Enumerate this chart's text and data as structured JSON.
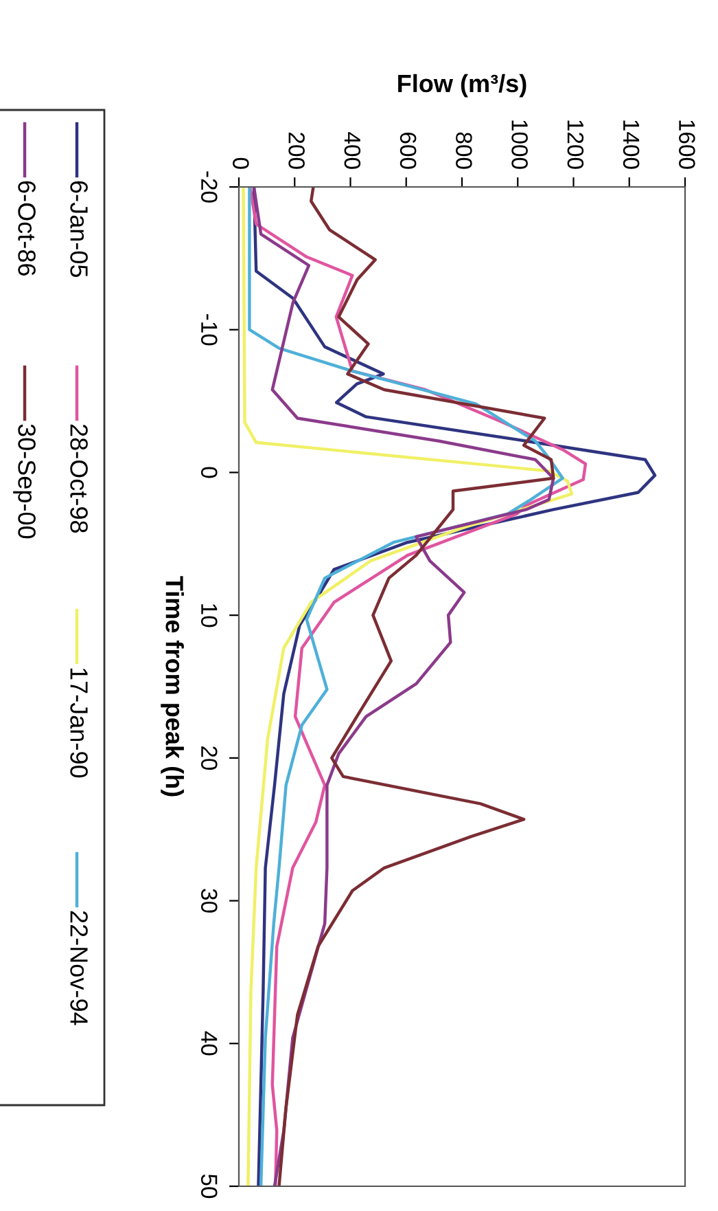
{
  "chart_data": {
    "type": "line",
    "xlabel": "Flow (m³/s)",
    "ylabel": "Time from peak (h)",
    "xlim": [
      0,
      1600
    ],
    "xticks": [
      0,
      200,
      400,
      600,
      800,
      1000,
      1200,
      1400,
      1600
    ],
    "ylim": [
      50,
      -20
    ],
    "yticks": [
      -20,
      -10,
      0,
      10,
      20,
      30,
      40,
      50
    ],
    "grid": false,
    "legend": "left",
    "line_style": "solid",
    "marker": "none",
    "series": [
      {
        "name": "6-Jan-05",
        "color": "#2e3480",
        "values": [
          -20,
          -14.1,
          -12.2,
          -8.8,
          -6.9,
          -6.2,
          -4.9,
          -3.9,
          -2.2,
          -0.9,
          0.2,
          1.4,
          2.6,
          4.9,
          6.8,
          8.4,
          10.7,
          15.5,
          21.9,
          27.7,
          36.4,
          50
        ],
        "x": [
          54,
          62,
          194,
          308,
          518,
          423,
          350,
          456,
          1030,
          1457,
          1492,
          1432,
          1128,
          604,
          341,
          292,
          218,
          161,
          128,
          95,
          87,
          70
        ]
      },
      {
        "name": "28-Oct-98",
        "color": "#e0559f",
        "values": [
          -20,
          -17.4,
          -15.1,
          -13.8,
          -10.9,
          -7.1,
          -5.8,
          -3.5,
          -1.6,
          -0.6,
          0.5,
          2.3,
          2.9,
          5.8,
          9.1,
          12.3,
          17.1,
          21.9,
          24.5,
          27.7,
          33.2,
          42.9,
          46.1,
          50
        ],
        "x": [
          40,
          62,
          243,
          407,
          349,
          407,
          669,
          948,
          1161,
          1243,
          1235,
          1030,
          997,
          605,
          341,
          226,
          202,
          308,
          276,
          193,
          136,
          120,
          136,
          131
        ]
      },
      {
        "name": "17-Jan-90",
        "color": "#f0f066",
        "values": [
          -20,
          -3.5,
          -2.1,
          -0.1,
          0.6,
          1.5,
          3.9,
          6.2,
          9.1,
          12.3,
          18.7,
          27.7,
          36.4,
          50
        ],
        "x": [
          16,
          21,
          62,
          1112,
          1178,
          1194,
          800,
          472,
          259,
          161,
          103,
          62,
          43,
          33
        ]
      },
      {
        "name": "22-Nov-94",
        "color": "#4eb0d8",
        "values": [
          -20,
          -10,
          -8.7,
          -7.1,
          -4.8,
          -2.2,
          -1.0,
          0.4,
          1.9,
          2.9,
          4.9,
          7.4,
          10.3,
          15.2,
          17.7,
          21.9,
          27.7,
          31.6,
          39.6,
          50
        ],
        "x": [
          38,
          38,
          144,
          407,
          850,
          1063,
          1112,
          1161,
          1047,
          964,
          554,
          308,
          243,
          316,
          226,
          169,
          144,
          125,
          95,
          79
        ]
      },
      {
        "name": "6-Oct-86",
        "color": "#8b3a8b",
        "values": [
          -20,
          -16.7,
          -14.5,
          -11.9,
          -5.8,
          -3.8,
          -2.2,
          -0.9,
          0.4,
          1.9,
          2.6,
          4.5,
          6.2,
          8.4,
          10.0,
          11.9,
          14.8,
          17.1,
          19.7,
          21.9,
          27.7,
          31.6,
          39.6,
          46.1,
          50
        ],
        "x": [
          54,
          79,
          251,
          194,
          120,
          210,
          718,
          1063,
          1128,
          1112,
          1030,
          636,
          685,
          808,
          751,
          759,
          636,
          456,
          358,
          316,
          316,
          308,
          193,
          161,
          128
        ]
      },
      {
        "name": "30-Sep-00",
        "color": "#7b2d33",
        "values": [
          -20,
          -19,
          -17,
          -14.9,
          -13.5,
          -10.9,
          -9.0,
          -6.9,
          -5.8,
          -3.8,
          -1.9,
          -0.9,
          0.4,
          1.3,
          2.6,
          5.8,
          7.4,
          10.0,
          13.2,
          17.1,
          20.0,
          21.3,
          23.2,
          24.3,
          25.5,
          27.7,
          29.3,
          33.2,
          38.0,
          44.5,
          50
        ],
        "x": [
          267,
          259,
          325,
          489,
          424,
          358,
          464,
          390,
          521,
          1096,
          1022,
          1120,
          1128,
          768,
          768,
          636,
          538,
          481,
          546,
          423,
          333,
          374,
          866,
          1022,
          833,
          521,
          407,
          284,
          210,
          169,
          144
        ]
      }
    ]
  }
}
